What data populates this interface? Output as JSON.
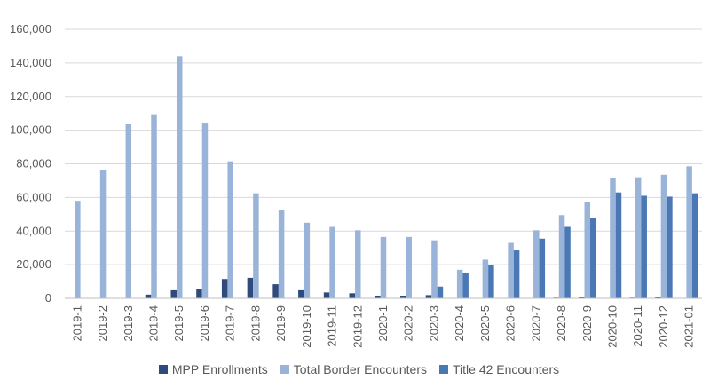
{
  "chart_data": {
    "type": "bar",
    "title": "",
    "xlabel": "",
    "ylabel": "",
    "ylim": [
      0,
      160000
    ],
    "yticks": [
      0,
      20000,
      40000,
      60000,
      80000,
      100000,
      120000,
      140000,
      160000
    ],
    "ytick_labels": [
      "0",
      "20,000",
      "40,000",
      "60,000",
      "80,000",
      "100,000",
      "120,000",
      "140,000",
      "160,000"
    ],
    "grid": true,
    "legend_position": "bottom",
    "categories": [
      "2019-1",
      "2019-2",
      "2019-3",
      "2019-4",
      "2019-5",
      "2019-6",
      "2019-7",
      "2019-8",
      "2019-9",
      "2019-10",
      "2019-11",
      "2019-12",
      "2020-1",
      "2020-2",
      "2020-3",
      "2020-4",
      "2020-5",
      "2020-6",
      "2020-7",
      "2020-8",
      "2020-9",
      "2020-10",
      "2020-11",
      "2020-12",
      "2021-01"
    ],
    "series": [
      {
        "name": "MPP Enrollments",
        "color": "#2f4b7c",
        "values": [
          0,
          0,
          0,
          2200,
          4800,
          5800,
          11500,
          12200,
          8400,
          4800,
          3500,
          3000,
          1600,
          1600,
          1900,
          0,
          0,
          0,
          0,
          400,
          1000,
          200,
          400,
          800,
          0
        ]
      },
      {
        "name": "Total Border Encounters",
        "color": "#9ab4d9",
        "values": [
          58000,
          76500,
          103500,
          109500,
          144000,
          104000,
          81500,
          62500,
          52500,
          45000,
          42500,
          40500,
          36500,
          36500,
          34500,
          17000,
          23000,
          33000,
          40500,
          49500,
          57500,
          71500,
          72000,
          73500,
          78500
        ]
      },
      {
        "name": "Title 42 Encounters",
        "color": "#4a78b5",
        "values": [
          0,
          0,
          0,
          0,
          0,
          0,
          0,
          0,
          0,
          0,
          0,
          0,
          0,
          0,
          7000,
          15000,
          20000,
          28500,
          35500,
          42500,
          48000,
          63000,
          61000,
          60500,
          62500
        ]
      }
    ]
  }
}
